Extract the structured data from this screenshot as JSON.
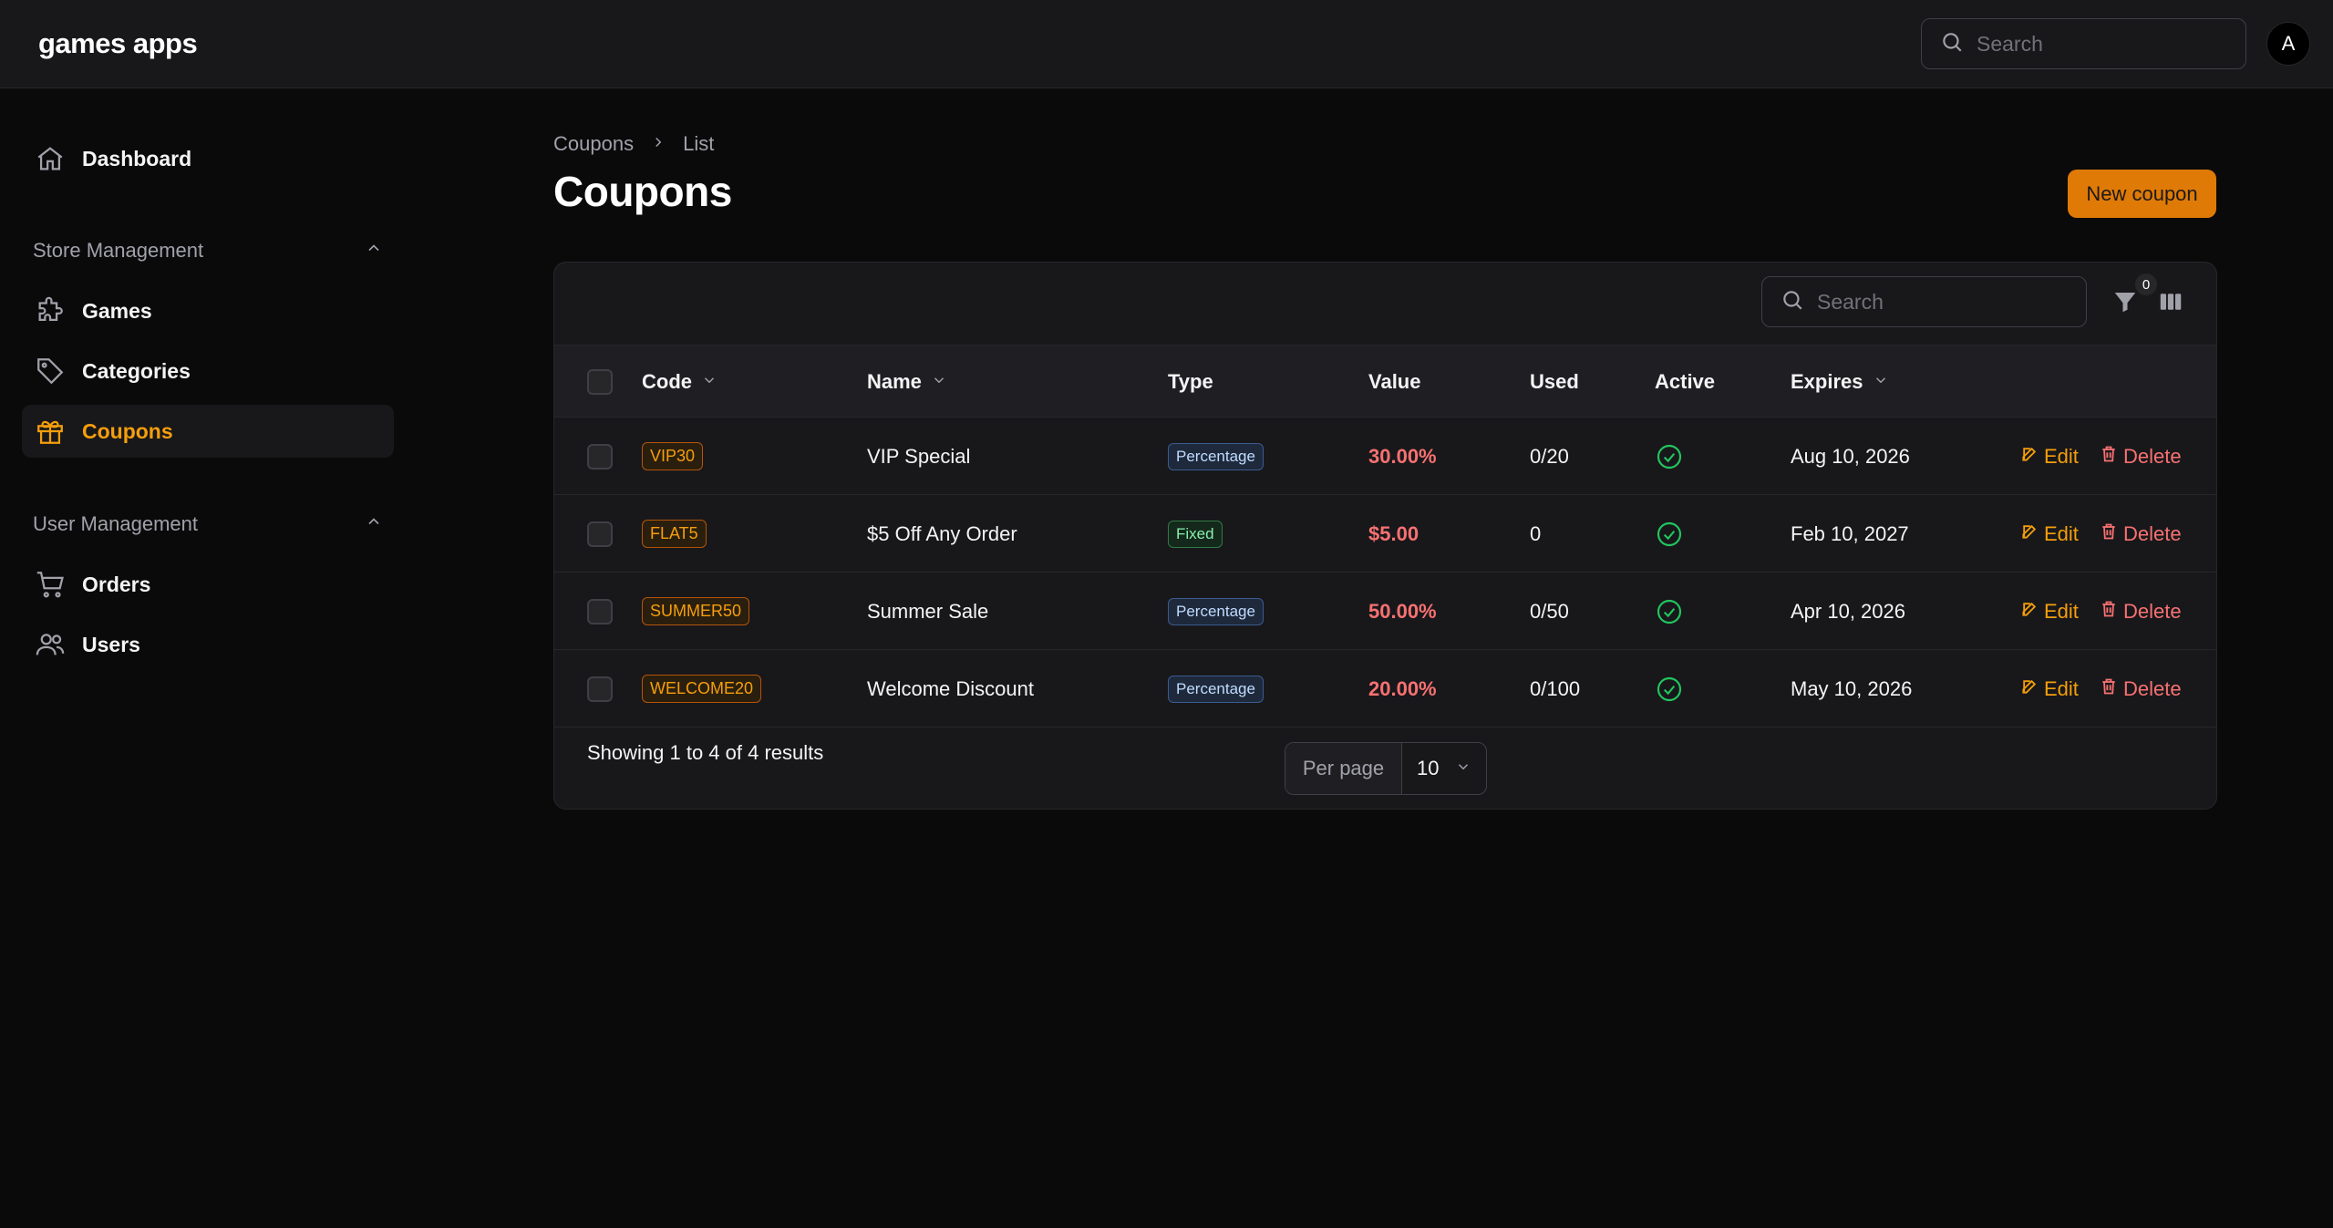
{
  "app": {
    "brand": "games apps"
  },
  "topbar": {
    "search_placeholder": "Search",
    "avatar_letter": "A"
  },
  "sidebar": {
    "dashboard": "Dashboard",
    "groups": [
      {
        "label": "Store Management",
        "items": [
          "Games",
          "Categories",
          "Coupons"
        ]
      },
      {
        "label": "User Management",
        "items": [
          "Orders",
          "Users"
        ]
      }
    ],
    "active_item": "Coupons"
  },
  "breadcrumb": {
    "parent": "Coupons",
    "current": "List"
  },
  "page": {
    "title": "Coupons",
    "new_button": "New coupon"
  },
  "table": {
    "search_placeholder": "Search",
    "filter_count": "0",
    "columns": [
      "Code",
      "Name",
      "Type",
      "Value",
      "Used",
      "Active",
      "Expires"
    ],
    "rows": [
      {
        "code": "VIP30",
        "name": "VIP Special",
        "type": "Percentage",
        "value": "30.00%",
        "used": "0/20",
        "active": true,
        "expires": "Aug 10, 2026"
      },
      {
        "code": "FLAT5",
        "name": "$5 Off Any Order",
        "type": "Fixed",
        "value": "$5.00",
        "used": "0",
        "active": true,
        "expires": "Feb 10, 2027"
      },
      {
        "code": "SUMMER50",
        "name": "Summer Sale",
        "type": "Percentage",
        "value": "50.00%",
        "used": "0/50",
        "active": true,
        "expires": "Apr 10, 2026"
      },
      {
        "code": "WELCOME20",
        "name": "Welcome Discount",
        "type": "Percentage",
        "value": "20.00%",
        "used": "0/100",
        "active": true,
        "expires": "May 10, 2026"
      }
    ],
    "edit_label": "Edit",
    "delete_label": "Delete",
    "footer": "Showing 1 to 4 of 4 results",
    "per_page_label": "Per page",
    "per_page_value": "10"
  },
  "colors": {
    "accent": "#f59e0b",
    "danger": "#f87171",
    "success": "#22c55e",
    "primary_button": "#e07a06"
  }
}
